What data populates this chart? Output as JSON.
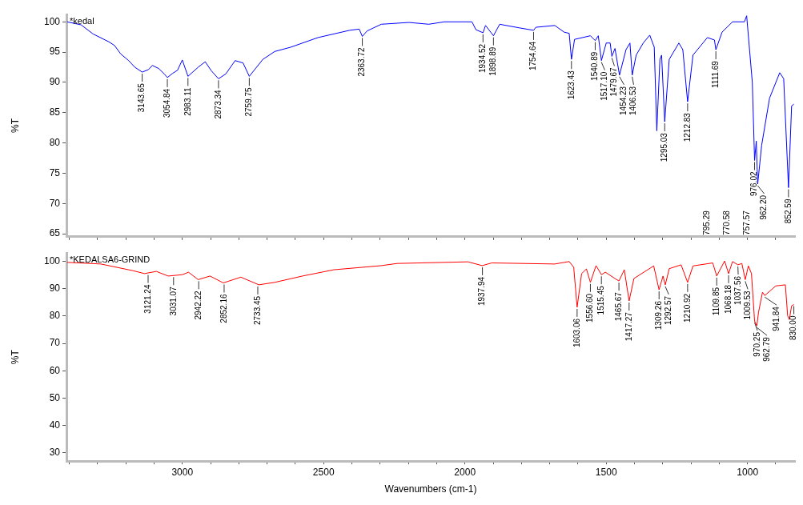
{
  "chart_data": [
    {
      "type": "line",
      "ylabel": "%T",
      "tick_labels": "y",
      "grid": false,
      "xlim": [
        3410,
        832
      ],
      "xticks": [
        {
          "value": 3400,
          "label": null
        },
        {
          "value": 3300,
          "label": null
        },
        {
          "value": 3200,
          "label": null
        },
        {
          "value": 3100,
          "label": null
        },
        {
          "value": 3000,
          "label": null
        },
        {
          "value": 2900,
          "label": null
        },
        {
          "value": 2800,
          "label": null
        },
        {
          "value": 2700,
          "label": null
        },
        {
          "value": 2600,
          "label": null
        },
        {
          "value": 2500,
          "label": null
        },
        {
          "value": 2400,
          "label": null
        },
        {
          "value": 2300,
          "label": null
        },
        {
          "value": 2200,
          "label": null
        },
        {
          "value": 2100,
          "label": null
        },
        {
          "value": 2000,
          "label": null
        },
        {
          "value": 1900,
          "label": null
        },
        {
          "value": 1800,
          "label": null
        },
        {
          "value": 1700,
          "label": null
        },
        {
          "value": 1600,
          "label": null
        },
        {
          "value": 1500,
          "label": null
        },
        {
          "value": 1400,
          "label": null
        },
        {
          "value": 1300,
          "label": null
        },
        {
          "value": 1200,
          "label": null
        },
        {
          "value": 1100,
          "label": null
        },
        {
          "value": 1000,
          "label": null
        },
        {
          "value": 900,
          "label": null
        }
      ],
      "ylim": [
        64.5,
        101.2
      ],
      "yticks": [
        65,
        70,
        75,
        80,
        85,
        90,
        95,
        100
      ],
      "series": [
        {
          "name": "*kedal",
          "color": "#0000ff",
          "x": [
            3408,
            3358,
            3316,
            3260,
            3240,
            3218,
            3190,
            3168,
            3142,
            3120,
            3106,
            3084,
            3064,
            3053,
            3034,
            3017,
            3000,
            2980,
            2944,
            2919,
            2897,
            2872,
            2846,
            2813,
            2785,
            2763,
            2715,
            2673,
            2617,
            2520,
            2408,
            2374,
            2363,
            2346,
            2296,
            2198,
            2128,
            2073,
            1975,
            1961,
            1936,
            1927,
            1899,
            1877,
            1807,
            1757,
            1749,
            1682,
            1649,
            1631,
            1623,
            1612,
            1556,
            1539,
            1528,
            1517,
            1500,
            1486,
            1480,
            1469,
            1453,
            1430,
            1416,
            1408,
            1394,
            1369,
            1346,
            1330,
            1321,
            1310,
            1304,
            1293,
            1277,
            1243,
            1229,
            1212,
            1193,
            1142,
            1117,
            1112,
            1090,
            1053,
            1011,
            1003,
            983,
            975,
            969,
            964,
            950,
            922,
            886,
            872,
            855,
            844,
            836
          ],
          "values": [
            100,
            99.5,
            98,
            96.7,
            96.1,
            94.7,
            93.6,
            92.5,
            91.7,
            92.1,
            92.8,
            92.3,
            91.4,
            90.8,
            91.5,
            92,
            93.7,
            91,
            92.5,
            93.4,
            91.9,
            90.6,
            91.4,
            93.6,
            93.2,
            91,
            93.8,
            95.1,
            95.8,
            97.4,
            98.6,
            98.8,
            97.6,
            98.5,
            99.6,
            99.9,
            99.6,
            100,
            100,
            98.7,
            98.2,
            99.4,
            97.7,
            99.6,
            99,
            98.6,
            99.1,
            99.4,
            98.3,
            98.1,
            93.8,
            97.1,
            97.7,
            96.9,
            97.7,
            93.6,
            96.5,
            96.5,
            94.3,
            95.6,
            91.2,
            95.4,
            96.5,
            91.2,
            94.5,
            96.5,
            97.8,
            95.8,
            82,
            93.8,
            94.5,
            83.5,
            93.8,
            96.5,
            95.4,
            86.8,
            94.5,
            97.4,
            97,
            95.4,
            98.3,
            100,
            100,
            101,
            90,
            77.1,
            80.3,
            73.2,
            79.6,
            87.4,
            91.6,
            90.6,
            72.6,
            86.1,
            86.4
          ]
        }
      ],
      "annotations": [
        {
          "text": "3143.65",
          "x": 3142,
          "y": 91.7
        },
        {
          "text": "3054.84",
          "x": 3053,
          "y": 90.8
        },
        {
          "text": "2983.11",
          "x": 2980,
          "y": 91
        },
        {
          "text": "2873.34",
          "x": 2872,
          "y": 90.6
        },
        {
          "text": "2759.75",
          "x": 2763,
          "y": 91
        },
        {
          "text": "2363.72",
          "x": 2363,
          "y": 97.6
        },
        {
          "text": "1934.52",
          "x": 1936,
          "y": 98.2
        },
        {
          "text": "1898.89",
          "x": 1899,
          "y": 97.7
        },
        {
          "text": "1754.64",
          "x": 1757,
          "y": 98.6
        },
        {
          "text": "1623.43",
          "x": 1623,
          "y": 93.8
        },
        {
          "text": "1540.89",
          "x": 1539,
          "y": 96.9
        },
        {
          "text": "1517.10",
          "x": 1517,
          "y": 93.6
        },
        {
          "text": "1479.67",
          "x": 1480,
          "y": 94.3
        },
        {
          "text": "1454.23",
          "x": 1453,
          "y": 91.2
        },
        {
          "text": "1406.53",
          "x": 1408,
          "y": 91.2
        },
        {
          "text": "1295.03",
          "x": 1293,
          "y": 83.5
        },
        {
          "text": "1212.83",
          "x": 1212,
          "y": 86.8
        },
        {
          "text": "1111.69",
          "x": 1112,
          "y": 95.4
        },
        {
          "text": "976.02",
          "x": 975,
          "y": 77.1
        },
        {
          "text": "962.20",
          "x": 964,
          "y": 73.2
        },
        {
          "text": "852.59",
          "x": 855,
          "y": 72.6
        },
        "795.29",
        "770.58",
        "757.57"
      ]
    },
    {
      "type": "line",
      "ylabel": "%T",
      "xlabel": "Wavenumbers (cm-1)",
      "grid": false,
      "xlim": [
        3410,
        832
      ],
      "xticks": [
        {
          "value": 3400,
          "label": null
        },
        {
          "value": 3300,
          "label": null
        },
        {
          "value": 3200,
          "label": null
        },
        {
          "value": 3100,
          "label": null
        },
        3000,
        {
          "value": 2900,
          "label": null
        },
        {
          "value": 2800,
          "label": null
        },
        {
          "value": 2700,
          "label": null
        },
        {
          "value": 2600,
          "label": null
        },
        2500,
        {
          "value": 2400,
          "label": null
        },
        {
          "value": 2300,
          "label": null
        },
        {
          "value": 2200,
          "label": null
        },
        {
          "value": 2100,
          "label": null
        },
        2000,
        {
          "value": 1900,
          "label": null
        },
        {
          "value": 1800,
          "label": null
        },
        {
          "value": 1700,
          "label": null
        },
        {
          "value": 1600,
          "label": null
        },
        1500,
        {
          "value": 1400,
          "label": null
        },
        {
          "value": 1300,
          "label": null
        },
        {
          "value": 1200,
          "label": null
        },
        {
          "value": 1100,
          "label": null
        },
        1000,
        {
          "value": 900,
          "label": null
        }
      ],
      "ylim": [
        27,
        103
      ],
      "yticks": [
        30,
        40,
        50,
        60,
        70,
        80,
        90,
        100
      ],
      "series": [
        {
          "name": "*KEDALSA6-GRIND",
          "color": "#ff0000",
          "x": [
            3408,
            3288,
            3176,
            3134,
            3092,
            3050,
            3000,
            2978,
            2944,
            2902,
            2855,
            2793,
            2729,
            2673,
            2575,
            2464,
            2296,
            2240,
            2073,
            1989,
            1939,
            1905,
            1682,
            1631,
            1615,
            1603,
            1587,
            1570,
            1556,
            1536,
            1517,
            1503,
            1472,
            1455,
            1436,
            1419,
            1402,
            1332,
            1313,
            1299,
            1291,
            1277,
            1235,
            1212,
            1193,
            1123,
            1109,
            1081,
            1067,
            1053,
            1034,
            1020,
            1008,
            997,
            986,
            975,
            967,
            961,
            947,
            939,
            900,
            866,
            858,
            852,
            844,
            836
          ],
          "values": [
            99.6,
            99,
            96.6,
            95.5,
            96.3,
            94.6,
            95.1,
            96,
            93.3,
            94.6,
            92.1,
            94.2,
            91.4,
            92.3,
            94.6,
            96.9,
            98.4,
            99.2,
            99.6,
            99.8,
            98.4,
            99.4,
            99,
            99.9,
            97.8,
            83.2,
            95.5,
            97.2,
            92.3,
            98.4,
            95.1,
            96,
            93.9,
            92.8,
            96.9,
            85.5,
            93.7,
            98.3,
            89.6,
            94.6,
            91.4,
            97.3,
            98.7,
            92.3,
            98.3,
            99.4,
            94.6,
            100.1,
            95.5,
            99.9,
            98.7,
            99.2,
            93.3,
            98.3,
            95.5,
            78.2,
            76.4,
            81.4,
            88.7,
            87.5,
            91,
            91.4,
            80.1,
            78.7,
            83.7,
            84.2
          ]
        }
      ],
      "annotations": [
        {
          "text": "3121.24",
          "x": 3121,
          "y": 95.6
        },
        {
          "text": "3031.07",
          "x": 3031,
          "y": 94.8
        },
        {
          "text": "2942.22",
          "x": 2942,
          "y": 93.3
        },
        {
          "text": "2852.16",
          "x": 2852,
          "y": 92.1
        },
        {
          "text": "2733.45",
          "x": 2733,
          "y": 91.4
        },
        {
          "text": "1937.94",
          "x": 1938,
          "y": 98.4
        },
        {
          "text": "1603.06",
          "x": 1603,
          "y": 83.2
        },
        {
          "text": "1556.60",
          "x": 1556,
          "y": 92.3
        },
        {
          "text": "1515.45",
          "x": 1517,
          "y": 95.1
        },
        {
          "text": "1465.67",
          "x": 1455,
          "y": 92.8
        },
        {
          "text": "1417.27",
          "x": 1419,
          "y": 85.5
        },
        {
          "text": "1309.26",
          "x": 1313,
          "y": 89.6
        },
        {
          "text": "1292.57",
          "x": 1291,
          "y": 91.4
        },
        {
          "text": "1210.92",
          "x": 1212,
          "y": 92.3
        },
        {
          "text": "1109.85",
          "x": 1109,
          "y": 94.6
        },
        {
          "text": "1068.18",
          "x": 1067,
          "y": 95.5
        },
        {
          "text": "1037.56",
          "x": 1034,
          "y": 98.7
        },
        {
          "text": "1009.53",
          "x": 1008,
          "y": 93.3
        },
        {
          "text": "970.25",
          "x": 975,
          "y": 78.2
        },
        {
          "text": "962.79",
          "x": 967,
          "y": 76.4
        },
        {
          "text": "941.84",
          "x": 939,
          "y": 87.5
        },
        {
          "text": "830.00",
          "x": 836,
          "y": 84.2
        }
      ]
    }
  ]
}
